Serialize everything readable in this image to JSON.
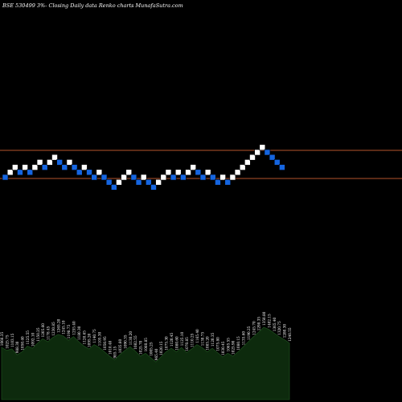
{
  "header": {
    "title": "BSE 530499 3%-  Closing Daily data  Renko  charts MunafaSutra.com"
  },
  "colors": {
    "background": "#000000",
    "up_brick": "#ffffff",
    "down_brick": "#1565e0",
    "reference_line": "#b5532c",
    "volume_fill": "#0d2a0d",
    "volume_line": "#1c4a1c"
  },
  "chart_data": {
    "type": "renko",
    "bricks": [
      {
        "level": 0,
        "dir": "down"
      },
      {
        "level": 1,
        "dir": "up"
      },
      {
        "level": 2,
        "dir": "up"
      },
      {
        "level": 1,
        "dir": "down"
      },
      {
        "level": 2,
        "dir": "up"
      },
      {
        "level": 1,
        "dir": "down"
      },
      {
        "level": 2,
        "dir": "up"
      },
      {
        "level": 3,
        "dir": "up"
      },
      {
        "level": 2,
        "dir": "down"
      },
      {
        "level": 3,
        "dir": "up"
      },
      {
        "level": 4,
        "dir": "up"
      },
      {
        "level": 3,
        "dir": "down"
      },
      {
        "level": 2,
        "dir": "down"
      },
      {
        "level": 3,
        "dir": "up"
      },
      {
        "level": 2,
        "dir": "down"
      },
      {
        "level": 1,
        "dir": "down"
      },
      {
        "level": 2,
        "dir": "up"
      },
      {
        "level": 1,
        "dir": "down"
      },
      {
        "level": 0,
        "dir": "down"
      },
      {
        "level": 1,
        "dir": "up"
      },
      {
        "level": 0,
        "dir": "down"
      },
      {
        "level": -1,
        "dir": "down"
      },
      {
        "level": -2,
        "dir": "down"
      },
      {
        "level": -1,
        "dir": "up"
      },
      {
        "level": 0,
        "dir": "up"
      },
      {
        "level": 1,
        "dir": "up"
      },
      {
        "level": 0,
        "dir": "down"
      },
      {
        "level": -1,
        "dir": "down"
      },
      {
        "level": 0,
        "dir": "up"
      },
      {
        "level": -1,
        "dir": "down"
      },
      {
        "level": -2,
        "dir": "down"
      },
      {
        "level": -1,
        "dir": "up"
      },
      {
        "level": 0,
        "dir": "up"
      },
      {
        "level": 1,
        "dir": "up"
      },
      {
        "level": 0,
        "dir": "down"
      },
      {
        "level": 1,
        "dir": "up"
      },
      {
        "level": 0,
        "dir": "down"
      },
      {
        "level": 1,
        "dir": "up"
      },
      {
        "level": 2,
        "dir": "up"
      },
      {
        "level": 1,
        "dir": "down"
      },
      {
        "level": 0,
        "dir": "down"
      },
      {
        "level": 1,
        "dir": "up"
      },
      {
        "level": 0,
        "dir": "down"
      },
      {
        "level": -1,
        "dir": "down"
      },
      {
        "level": 0,
        "dir": "up"
      },
      {
        "level": -1,
        "dir": "down"
      },
      {
        "level": 0,
        "dir": "up"
      },
      {
        "level": 1,
        "dir": "up"
      },
      {
        "level": 2,
        "dir": "up"
      },
      {
        "level": 3,
        "dir": "up"
      },
      {
        "level": 4,
        "dir": "up"
      },
      {
        "level": 5,
        "dir": "up"
      },
      {
        "level": 6,
        "dir": "up"
      },
      {
        "level": 5,
        "dir": "down"
      },
      {
        "level": 4,
        "dir": "down"
      },
      {
        "level": 3,
        "dir": "down"
      },
      {
        "level": 2,
        "dir": "down"
      }
    ],
    "reference_levels": [
      5,
      0
    ],
    "volume_labels": [
      "1066.35",
      "1025.75",
      "1103.15",
      "988.30",
      "1050.40",
      "1125.55",
      "1092.10",
      "1150.25",
      "1205.60",
      "1178.45",
      "1230.85",
      "1265.20",
      "1245.10",
      "1198.75",
      "1255.40",
      "1180.30",
      "1120.65",
      "1095.20",
      "1140.75",
      "1105.30",
      "1050.95",
      "1010.40",
      "985.15",
      "1035.60",
      "1090.35",
      "1130.20",
      "1082.55",
      "1025.70",
      "1060.85",
      "1005.25",
      "965.40",
      "1020.15",
      "1075.30",
      "1120.45",
      "1080.60",
      "1125.10",
      "1070.85",
      "1110.25",
      "1165.40",
      "1130.75",
      "1085.20",
      "1120.35",
      "1075.80",
      "1030.45",
      "1065.55",
      "1025.90",
      "1080.15",
      "1135.60",
      "1190.25",
      "1245.70",
      "1298.35",
      "1350.80",
      "1402.15",
      "1365.40",
      "1320.75",
      "1280.30",
      "1240.55"
    ],
    "volume_values": [
      72,
      68,
      70,
      62,
      66,
      74,
      71,
      78,
      84,
      80,
      86,
      90,
      88,
      82,
      87,
      80,
      74,
      70,
      76,
      72,
      66,
      60,
      55,
      62,
      68,
      73,
      67,
      60,
      64,
      58,
      52,
      59,
      66,
      71,
      66,
      72,
      65,
      70,
      76,
      72,
      66,
      71,
      65,
      59,
      64,
      60,
      66,
      73,
      80,
      87,
      93,
      100,
      97,
      92,
      87,
      83,
      78
    ]
  }
}
